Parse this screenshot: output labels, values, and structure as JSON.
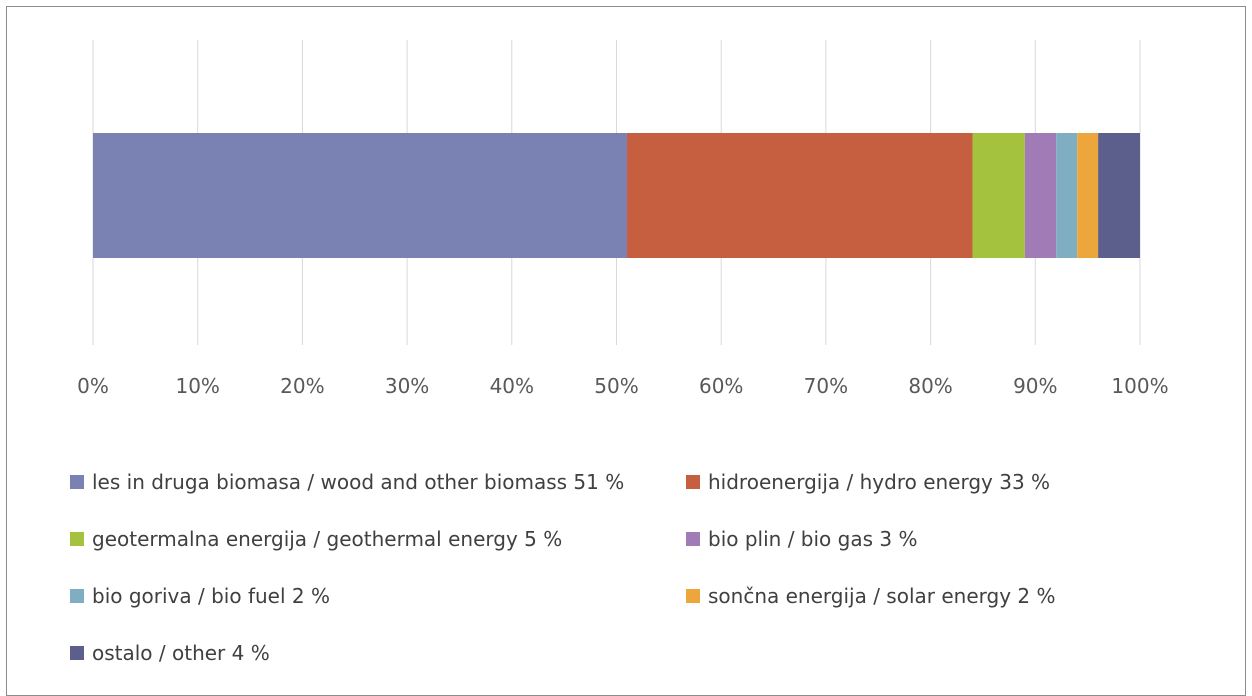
{
  "chart_data": {
    "type": "bar",
    "orientation": "horizontal-stacked-100",
    "title": "",
    "xlabel": "",
    "ylabel": "",
    "xlim": [
      0,
      100
    ],
    "x_ticks": [
      "0%",
      "10%",
      "20%",
      "30%",
      "40%",
      "50%",
      "60%",
      "70%",
      "80%",
      "90%",
      "100%"
    ],
    "grid": true,
    "legend_position": "bottom",
    "series": [
      {
        "name": "les in druga biomasa / wood and other biomass 51 %",
        "value": 51,
        "color": "#7a82b4"
      },
      {
        "name": "hidroenergija / hydro energy 33 %",
        "value": 33,
        "color": "#c55f40"
      },
      {
        "name": "geotermalna energija / geothermal energy 5 %",
        "value": 5,
        "color": "#a4c23e"
      },
      {
        "name": "bio plin / bio gas 3 %",
        "value": 3,
        "color": "#a17bb6"
      },
      {
        "name": "bio goriva / bio fuel 2 %",
        "value": 2,
        "color": "#7faec3"
      },
      {
        "name": "sončna energija / solar energy 2 %",
        "value": 2,
        "color": "#eca63b"
      },
      {
        "name": "ostalo / other 4 %",
        "value": 4,
        "color": "#5c5f8c"
      }
    ]
  }
}
